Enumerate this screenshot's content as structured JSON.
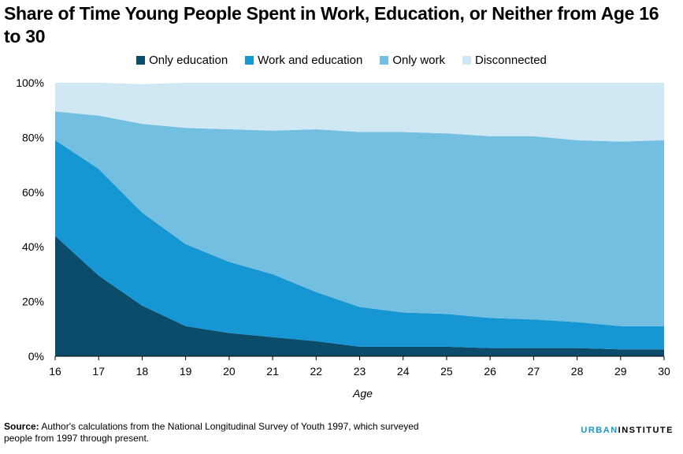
{
  "title": "Share of Time Young People Spent in Work, Education, or Neither from Age 16 to 30",
  "source_label": "Source:",
  "source_text": "Author's calculations from the National Longitudinal Survey of Youth 1997, which surveyed people from 1997 through present.",
  "brand": {
    "part1": "URBAN",
    "part2": "INSTITUTE"
  },
  "colors": {
    "only_education": "#0a4c6a",
    "work_and_education": "#1696d2",
    "only_work": "#73bfe2",
    "disconnected": "#cfe8f3"
  },
  "chart_data": {
    "type": "area",
    "stacked": true,
    "xlabel": "Age",
    "ylabel": "",
    "x": [
      16,
      17,
      18,
      19,
      20,
      21,
      22,
      23,
      24,
      25,
      26,
      27,
      28,
      29,
      30
    ],
    "ylim": [
      0,
      100
    ],
    "yticks": [
      "0%",
      "20%",
      "40%",
      "60%",
      "80%",
      "100%"
    ],
    "legend_position": "top",
    "series": [
      {
        "name": "Only education",
        "color": "#0a4c6a",
        "values": [
          44,
          29.5,
          18.5,
          11,
          8.5,
          7,
          5.5,
          3.5,
          3.5,
          3.5,
          3,
          3,
          3,
          2.5,
          2.5
        ]
      },
      {
        "name": "Work and education",
        "color": "#1696d2",
        "values": [
          35,
          39,
          34,
          30,
          26,
          23,
          18,
          14.5,
          12.5,
          12,
          11,
          10.5,
          9.5,
          8.5,
          8.5
        ]
      },
      {
        "name": "Only work",
        "color": "#73bfe2",
        "values": [
          10.5,
          19.5,
          32.5,
          42.5,
          48.5,
          52.5,
          59.5,
          64,
          66,
          66,
          66.5,
          67,
          66.5,
          67.5,
          68
        ]
      },
      {
        "name": "Disconnected",
        "color": "#cfe8f3",
        "values": [
          10.5,
          12,
          14.5,
          16.5,
          17,
          17.5,
          17,
          18,
          18,
          18.5,
          19.5,
          19.5,
          21,
          21.5,
          21
        ]
      }
    ]
  }
}
